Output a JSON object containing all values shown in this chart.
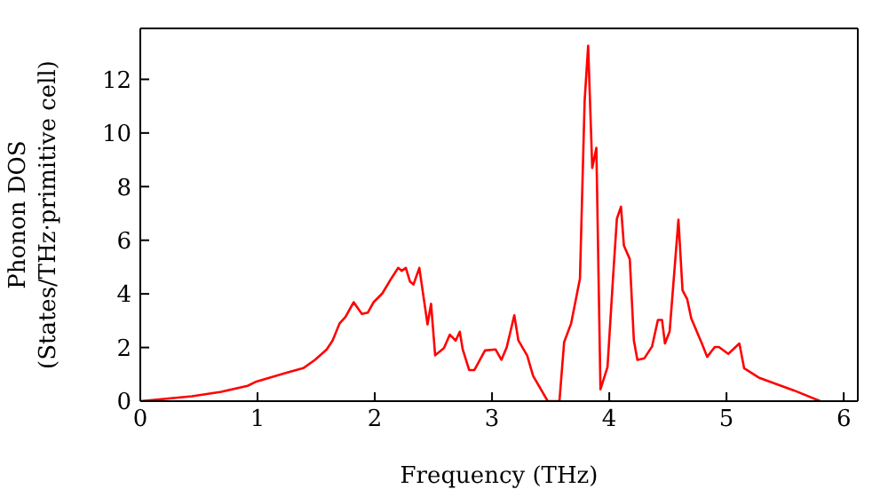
{
  "chart_data": {
    "type": "line",
    "xlabel": "Frequency (THz)",
    "ylabel": "Phonon DOS\n(States/THz·primitive cell)",
    "x": [
      0,
      0.44,
      0.69,
      0.915,
      0.99,
      1.24,
      1.39,
      1.49,
      1.59,
      1.64,
      1.7,
      1.75,
      1.82,
      1.89,
      1.94,
      1.99,
      2.065,
      2.14,
      2.2,
      2.23,
      2.265,
      2.3,
      2.33,
      2.38,
      2.45,
      2.48,
      2.515,
      2.59,
      2.64,
      2.69,
      2.725,
      2.75,
      2.805,
      2.85,
      2.94,
      3.03,
      3.08,
      3.125,
      3.19,
      3.225,
      3.3,
      3.35,
      3.475,
      3.575,
      3.615,
      3.675,
      3.75,
      3.79,
      3.82,
      3.855,
      3.89,
      3.925,
      3.985,
      4.035,
      4.065,
      4.1,
      4.125,
      4.175,
      4.21,
      4.24,
      4.3,
      4.365,
      4.415,
      4.45,
      4.475,
      4.515,
      4.59,
      4.625,
      4.665,
      4.7,
      4.79,
      4.835,
      4.9,
      4.935,
      5.015,
      5.11,
      5.15,
      5.275,
      5.575,
      5.8
    ],
    "series": [
      {
        "color": "#ff0000",
        "values": [
          0,
          0.18,
          0.35,
          0.57,
          0.73,
          1.05,
          1.23,
          1.54,
          1.93,
          2.26,
          2.9,
          3.14,
          3.69,
          3.25,
          3.3,
          3.69,
          4.02,
          4.57,
          4.97,
          4.86,
          4.97,
          4.46,
          4.35,
          4.97,
          2.86,
          3.63,
          1.71,
          1.98,
          2.48,
          2.26,
          2.59,
          1.93,
          1.16,
          1.16,
          1.89,
          1.93,
          1.54,
          2.0,
          3.2,
          2.26,
          1.7,
          0.95,
          0,
          0,
          2.2,
          2.9,
          4.57,
          11.2,
          13.25,
          8.7,
          9.45,
          0.44,
          1.27,
          4.8,
          6.8,
          7.25,
          5.8,
          5.3,
          2.26,
          1.54,
          1.6,
          2.04,
          3.03,
          3.03,
          2.15,
          2.6,
          6.77,
          4.13,
          3.8,
          3.08,
          2.15,
          1.65,
          2.02,
          2.02,
          1.76,
          2.15,
          1.23,
          0.88,
          0.4,
          0
        ]
      }
    ],
    "xlim": [
      0,
      6.12
    ],
    "xticks": [
      0,
      1,
      2,
      3,
      4,
      5,
      6
    ],
    "ylim": [
      0,
      13.9
    ],
    "yticks": [
      0,
      2,
      4,
      6,
      8,
      10,
      12
    ],
    "legend": false,
    "marker": "none",
    "line_style": "solid"
  }
}
